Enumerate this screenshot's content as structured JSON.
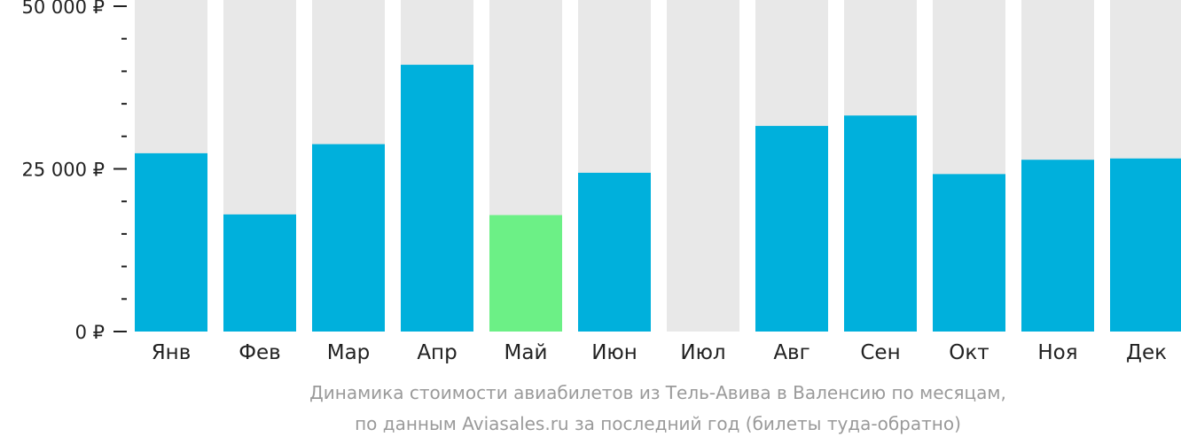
{
  "chart_data": {
    "type": "bar",
    "categories": [
      "Янв",
      "Фев",
      "Мар",
      "Апр",
      "Май",
      "Июн",
      "Июл",
      "Авг",
      "Сен",
      "Окт",
      "Ноя",
      "Дек"
    ],
    "values": [
      27400,
      18000,
      28800,
      41000,
      17900,
      24400,
      null,
      31600,
      33200,
      24200,
      26400,
      26600
    ],
    "highlight_index": 4,
    "ylim": [
      0,
      50000
    ],
    "yticks": [
      0,
      25000,
      50000
    ],
    "ytick_labels": [
      "0 ₽",
      "25 000 ₽",
      "50 000 ₽"
    ],
    "minor_ticks_between": 4,
    "title": "",
    "xlabel": "",
    "ylabel": "",
    "colors": {
      "bar": "#00b0dc",
      "highlight": "#6cf086",
      "background_bar": "#e8e8e8",
      "axis": "#222222",
      "caption": "#9a9a9a"
    }
  },
  "caption": {
    "line1": "Динамика стоимости авиабилетов из Тель-Авива в Валенсию по месяцам,",
    "line2": "по данным Aviasales.ru за последний год (билеты туда-обратно)"
  }
}
